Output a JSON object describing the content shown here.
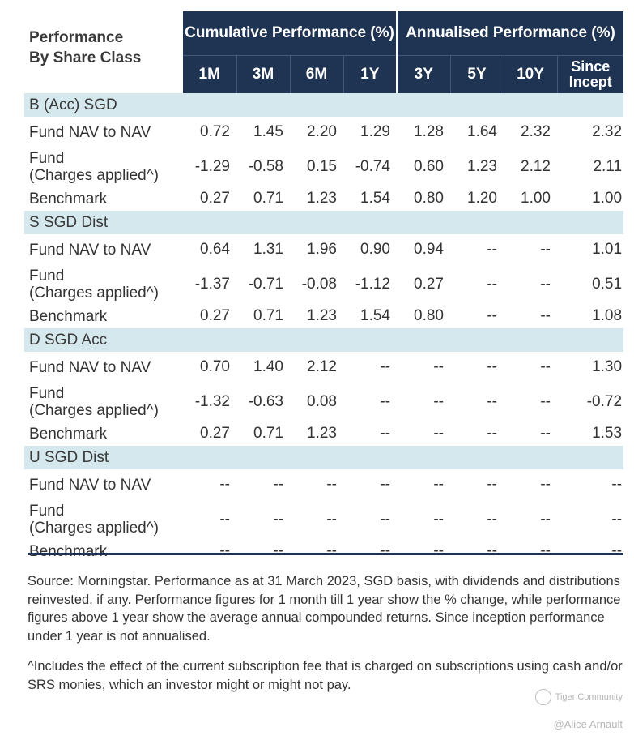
{
  "header": {
    "corner_line1": "Performance",
    "corner_line2": "By Share Class",
    "group_cumulative": "Cumulative Performance (%)",
    "group_annualised": "Annualised Performance (%)",
    "periods": [
      "1M",
      "3M",
      "6M",
      "1Y",
      "3Y",
      "5Y",
      "10Y"
    ],
    "since_line1": "Since",
    "since_line2": "Incept"
  },
  "sections": [
    {
      "name": "B (Acc) SGD",
      "rows": [
        {
          "label1": "Fund NAV to NAV",
          "label2": "",
          "values": [
            "0.72",
            "1.45",
            "2.20",
            "1.29",
            "1.28",
            "1.64",
            "2.32",
            "2.32"
          ]
        },
        {
          "label1": "Fund",
          "label2": "(Charges applied^)",
          "values": [
            "-1.29",
            "-0.58",
            "0.15",
            "-0.74",
            "0.60",
            "1.23",
            "2.12",
            "2.11"
          ]
        },
        {
          "label1": "Benchmark",
          "label2": "",
          "values": [
            "0.27",
            "0.71",
            "1.23",
            "1.54",
            "0.80",
            "1.20",
            "1.00",
            "1.00"
          ]
        }
      ]
    },
    {
      "name": "S SGD Dist",
      "rows": [
        {
          "label1": "Fund NAV to NAV",
          "label2": "",
          "values": [
            "0.64",
            "1.31",
            "1.96",
            "0.90",
            "0.94",
            "--",
            "--",
            "1.01"
          ]
        },
        {
          "label1": "Fund",
          "label2": "(Charges applied^)",
          "values": [
            "-1.37",
            "-0.71",
            "-0.08",
            "-1.12",
            "0.27",
            "--",
            "--",
            "0.51"
          ]
        },
        {
          "label1": "Benchmark",
          "label2": "",
          "values": [
            "0.27",
            "0.71",
            "1.23",
            "1.54",
            "0.80",
            "--",
            "--",
            "1.08"
          ]
        }
      ]
    },
    {
      "name": "D SGD Acc",
      "rows": [
        {
          "label1": "Fund NAV to NAV",
          "label2": "",
          "values": [
            "0.70",
            "1.40",
            "2.12",
            "--",
            "--",
            "--",
            "--",
            "1.30"
          ]
        },
        {
          "label1": "Fund",
          "label2": "(Charges applied^)",
          "values": [
            "-1.32",
            "-0.63",
            "0.08",
            "--",
            "--",
            "--",
            "--",
            "-0.72"
          ]
        },
        {
          "label1": "Benchmark",
          "label2": "",
          "values": [
            "0.27",
            "0.71",
            "1.23",
            "--",
            "--",
            "--",
            "--",
            "1.53"
          ]
        }
      ]
    },
    {
      "name": "U SGD Dist",
      "rows": [
        {
          "label1": "Fund NAV to NAV",
          "label2": "",
          "values": [
            "--",
            "--",
            "--",
            "--",
            "--",
            "--",
            "--",
            "--"
          ]
        },
        {
          "label1": "Fund",
          "label2": "(Charges applied^)",
          "values": [
            "--",
            "--",
            "--",
            "--",
            "--",
            "--",
            "--",
            "--"
          ]
        },
        {
          "label1": "Benchmark",
          "label2": "",
          "values": [
            "--",
            "--",
            "--",
            "--",
            "--",
            "--",
            "--",
            "--"
          ]
        }
      ]
    }
  ],
  "notes": {
    "source": "Source: Morningstar. Performance as at 31 March 2023, SGD basis, with dividends and distributions reinvested, if any. Performance figures for 1 month till 1 year show the % change, while performance figures above 1 year show the average annual compounded returns. Since inception performance under 1 year is not annualised.",
    "footnote": "^Includes the effect of the current subscription fee that is charged on subscriptions using cash and/or SRS monies, which an investor might or might not pay."
  },
  "watermark": {
    "brand": "Tiger Community",
    "handle": "@Alice Arnault",
    "icon": "tiger-community-logo-icon"
  }
}
